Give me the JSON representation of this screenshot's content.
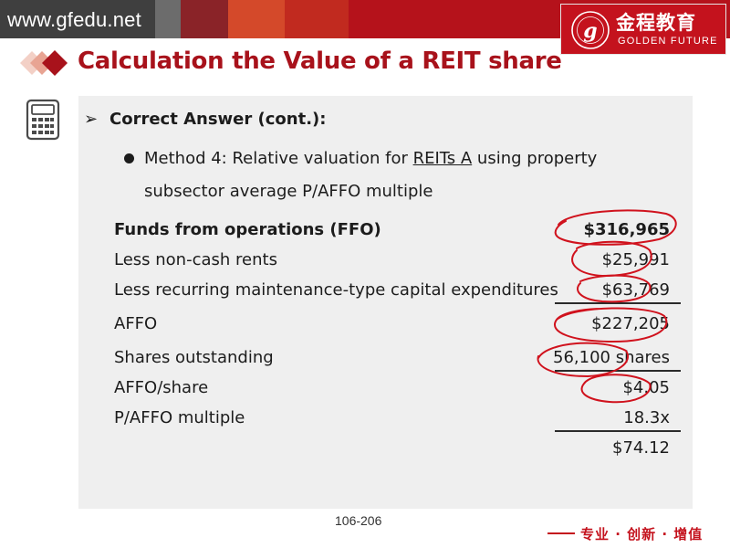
{
  "header": {
    "site_url": "www.gfedu.net",
    "logo_cn": "金程教育",
    "logo_en": "GOLDEN FUTURE",
    "accent": "#b5121b"
  },
  "slide": {
    "title": "Calculation the Value of a REIT share",
    "bullet_main": "Correct Answer (cont.):",
    "bullet_sub_prefix": "Method 4: Relative valuation for ",
    "bullet_sub_link": "REITs A",
    "bullet_sub_suffix": " using property subsector average P/AFFO multiple",
    "rows": [
      {
        "label": "Funds from operations (FFO)",
        "value": "$316,965"
      },
      {
        "label": "Less non-cash rents",
        "value": "$25,991"
      },
      {
        "label": "Less recurring maintenance-type capital expenditures",
        "value": "$63,769"
      },
      {
        "label": "AFFO",
        "value": "$227,205"
      },
      {
        "label": "Shares outstanding",
        "value": "56,100 shares"
      },
      {
        "label": "AFFO/share",
        "value": "$4.05"
      },
      {
        "label": "P/AFFO multiple",
        "value": "18.3x"
      },
      {
        "label": "",
        "value": "$74.12"
      }
    ],
    "icon": "calculator-icon"
  },
  "footer": {
    "page_number": "106-206",
    "slogan": "专业 · 创新 · 增值"
  }
}
